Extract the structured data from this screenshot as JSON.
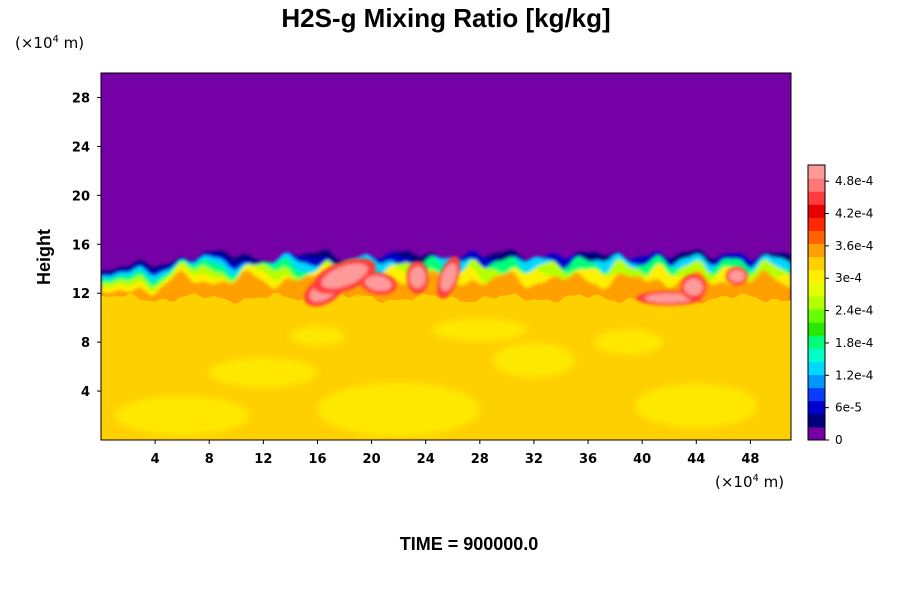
{
  "chart_data": {
    "type": "heatmap",
    "title": "H2S-g Mixing Ratio [kg/kg]",
    "ylabel": "Height",
    "x_unit": {
      "prefix": "(×10",
      "exp": "4",
      "suffix": " m)"
    },
    "y_unit": {
      "prefix": "(×10",
      "exp": "4",
      "suffix": " m)"
    },
    "xlim": [
      0,
      51
    ],
    "ylim": [
      0,
      30
    ],
    "x_ticks": [
      4,
      8,
      12,
      16,
      20,
      24,
      28,
      32,
      36,
      40,
      44,
      48
    ],
    "y_ticks": [
      4,
      8,
      12,
      16,
      20,
      24,
      28
    ],
    "colorbar": {
      "min": 0,
      "max": 0.00051,
      "ticks": [
        {
          "value": 0,
          "label": "0"
        },
        {
          "value": 6e-05,
          "label": "6e-5"
        },
        {
          "value": 0.00012,
          "label": "1.2e-4"
        },
        {
          "value": 0.00018,
          "label": "1.8e-4"
        },
        {
          "value": 0.00024,
          "label": "2.4e-4"
        },
        {
          "value": 0.0003,
          "label": "3e-4"
        },
        {
          "value": 0.00036,
          "label": "3.6e-4"
        },
        {
          "value": 0.00042,
          "label": "4.2e-4"
        },
        {
          "value": 0.00048,
          "label": "4.8e-4"
        }
      ],
      "colors": [
        "#7400a6",
        "#00007a",
        "#0000cc",
        "#0a3cff",
        "#0096ff",
        "#00d8ff",
        "#00ffc8",
        "#00ff78",
        "#28e800",
        "#64ff00",
        "#b4ff00",
        "#e6ff00",
        "#fff000",
        "#ffd000",
        "#ffa000",
        "#ff6400",
        "#ff2800",
        "#e60000",
        "#ff3c3c",
        "#ff7878",
        "#ff9a9a"
      ]
    },
    "fields": {
      "background_value": 0,
      "lower_layer_value": 0.000325,
      "lower_layer_top_approx": 12,
      "mixing_zone_y_range": [
        11,
        15
      ],
      "peak_value_approx": 0.0005,
      "peak_regions_x": [
        16,
        18,
        20,
        23,
        26,
        42,
        44,
        47
      ]
    }
  },
  "footer": {
    "time_label": "TIME = 900000.0"
  }
}
